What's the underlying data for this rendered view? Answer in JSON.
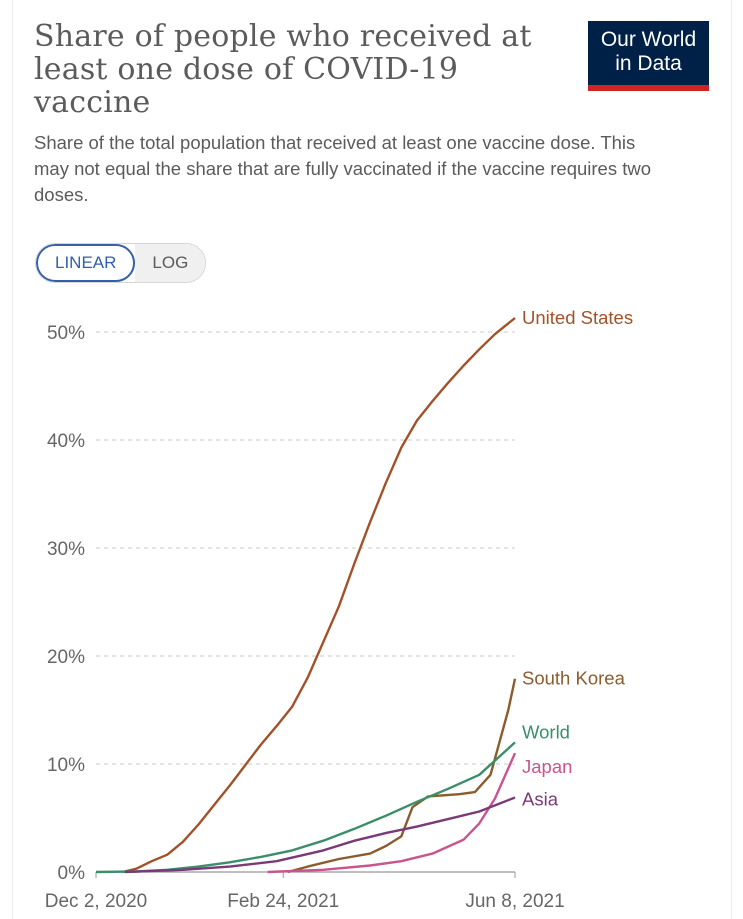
{
  "title": "Share of people who received at least one dose of COVID-19 vaccine",
  "subtitle": "Share of the total population that received at least one vaccine dose. This may not equal the share that are fully vaccinated if the vaccine requires two doses.",
  "logo": {
    "line1": "Our World",
    "line2": "in Data",
    "bg": "#002147",
    "accent": "#ce261e"
  },
  "scale_toggle": {
    "options": [
      "LINEAR",
      "LOG"
    ],
    "selected": "LINEAR"
  },
  "chart_data": {
    "type": "line",
    "title": "Share of people who received at least one dose of COVID-19 vaccine",
    "ylabel": "",
    "xlabel": "",
    "ylim": [
      0,
      50
    ],
    "y_ticks": [
      "0%",
      "10%",
      "20%",
      "30%",
      "40%",
      "50%"
    ],
    "y_tick_values": [
      0,
      10,
      20,
      30,
      40,
      50
    ],
    "x_ticks": [
      "Dec 2, 2020",
      "Feb 24, 2021",
      "Jun 8, 2021"
    ],
    "x_tick_values": [
      "2020-12-02",
      "2021-02-24",
      "2021-06-08"
    ],
    "xlim": [
      "2020-12-02",
      "2021-06-08"
    ],
    "grid": "horizontal-dashed",
    "legend": "inline-right",
    "series": [
      {
        "name": "United States",
        "color": "#a2522a",
        "points": [
          [
            "2020-12-14",
            0
          ],
          [
            "2020-12-20",
            0.3
          ],
          [
            "2020-12-27",
            1.0
          ],
          [
            "2021-01-03",
            1.6
          ],
          [
            "2021-01-10",
            2.8
          ],
          [
            "2021-01-17",
            4.4
          ],
          [
            "2021-01-24",
            6.2
          ],
          [
            "2021-01-31",
            8.0
          ],
          [
            "2021-02-07",
            9.9
          ],
          [
            "2021-02-14",
            11.8
          ],
          [
            "2021-02-21",
            13.5
          ],
          [
            "2021-02-28",
            15.3
          ],
          [
            "2021-03-07",
            18.0
          ],
          [
            "2021-03-14",
            21.3
          ],
          [
            "2021-03-21",
            24.6
          ],
          [
            "2021-03-28",
            28.6
          ],
          [
            "2021-04-04",
            32.4
          ],
          [
            "2021-04-11",
            36.0
          ],
          [
            "2021-04-18",
            39.3
          ],
          [
            "2021-04-25",
            41.8
          ],
          [
            "2021-05-02",
            43.6
          ],
          [
            "2021-05-09",
            45.3
          ],
          [
            "2021-05-16",
            46.9
          ],
          [
            "2021-05-23",
            48.4
          ],
          [
            "2021-05-30",
            49.8
          ],
          [
            "2021-06-08",
            51.3
          ]
        ]
      },
      {
        "name": "South Korea",
        "color": "#8c5b2e",
        "points": [
          [
            "2021-02-26",
            0
          ],
          [
            "2021-03-07",
            0.5
          ],
          [
            "2021-03-21",
            1.2
          ],
          [
            "2021-04-04",
            1.7
          ],
          [
            "2021-04-11",
            2.4
          ],
          [
            "2021-04-18",
            3.3
          ],
          [
            "2021-04-23",
            6.0
          ],
          [
            "2021-04-30",
            7.0
          ],
          [
            "2021-05-14",
            7.2
          ],
          [
            "2021-05-21",
            7.4
          ],
          [
            "2021-05-28",
            9.0
          ],
          [
            "2021-06-01",
            12.0
          ],
          [
            "2021-06-05",
            15.0
          ],
          [
            "2021-06-08",
            17.9
          ]
        ]
      },
      {
        "name": "World",
        "color": "#3a8e6a",
        "points": [
          [
            "2020-12-02",
            0
          ],
          [
            "2020-12-20",
            0.05
          ],
          [
            "2021-01-03",
            0.2
          ],
          [
            "2021-01-17",
            0.5
          ],
          [
            "2021-01-31",
            0.9
          ],
          [
            "2021-02-14",
            1.4
          ],
          [
            "2021-02-28",
            2.0
          ],
          [
            "2021-03-14",
            2.9
          ],
          [
            "2021-03-28",
            4.0
          ],
          [
            "2021-04-11",
            5.2
          ],
          [
            "2021-04-25",
            6.5
          ],
          [
            "2021-05-09",
            7.7
          ],
          [
            "2021-05-23",
            9.0
          ],
          [
            "2021-06-08",
            12.0
          ]
        ]
      },
      {
        "name": "Japan",
        "color": "#c9558e",
        "points": [
          [
            "2021-02-17",
            0
          ],
          [
            "2021-03-14",
            0.2
          ],
          [
            "2021-04-04",
            0.6
          ],
          [
            "2021-04-18",
            1.0
          ],
          [
            "2021-05-02",
            1.7
          ],
          [
            "2021-05-16",
            3.0
          ],
          [
            "2021-05-23",
            4.5
          ],
          [
            "2021-05-30",
            6.8
          ],
          [
            "2021-06-08",
            11.0
          ]
        ]
      },
      {
        "name": "Asia",
        "color": "#7a3a78",
        "points": [
          [
            "2020-12-15",
            0
          ],
          [
            "2021-01-10",
            0.2
          ],
          [
            "2021-01-31",
            0.5
          ],
          [
            "2021-02-21",
            1.0
          ],
          [
            "2021-03-14",
            2.0
          ],
          [
            "2021-03-28",
            2.9
          ],
          [
            "2021-04-11",
            3.6
          ],
          [
            "2021-04-25",
            4.2
          ],
          [
            "2021-05-09",
            4.9
          ],
          [
            "2021-05-23",
            5.6
          ],
          [
            "2021-06-08",
            6.9
          ]
        ]
      }
    ]
  }
}
